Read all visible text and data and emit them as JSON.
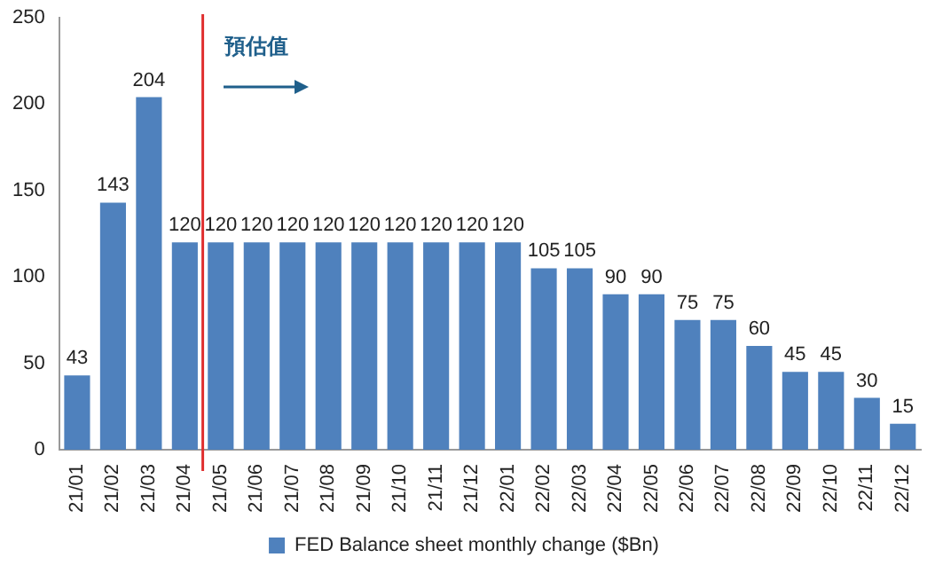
{
  "chart_data": {
    "type": "bar",
    "categories": [
      "21/01",
      "21/02",
      "21/03",
      "21/04",
      "21/05",
      "21/06",
      "21/07",
      "21/08",
      "21/09",
      "21/10",
      "21/11",
      "21/12",
      "22/01",
      "22/02",
      "22/03",
      "22/04",
      "22/05",
      "22/06",
      "22/07",
      "22/08",
      "22/09",
      "22/10",
      "22/11",
      "22/12"
    ],
    "series": [
      {
        "name": "FED Balance sheet monthly change ($Bn)",
        "color": "#4f81bd",
        "values": [
          43,
          143,
          204,
          120,
          120,
          120,
          120,
          120,
          120,
          120,
          120,
          120,
          120,
          105,
          105,
          90,
          90,
          75,
          75,
          60,
          45,
          45,
          30,
          15
        ]
      }
    ],
    "ylim": [
      0,
      250
    ],
    "yticks": [
      0,
      50,
      100,
      150,
      200,
      250
    ],
    "grid": false,
    "legend": "bottom",
    "data_labels": true,
    "ref_lines": [
      {
        "axis": "x",
        "value": "21/05",
        "color": "#e03030"
      }
    ],
    "annotations": [
      "預估值"
    ]
  }
}
